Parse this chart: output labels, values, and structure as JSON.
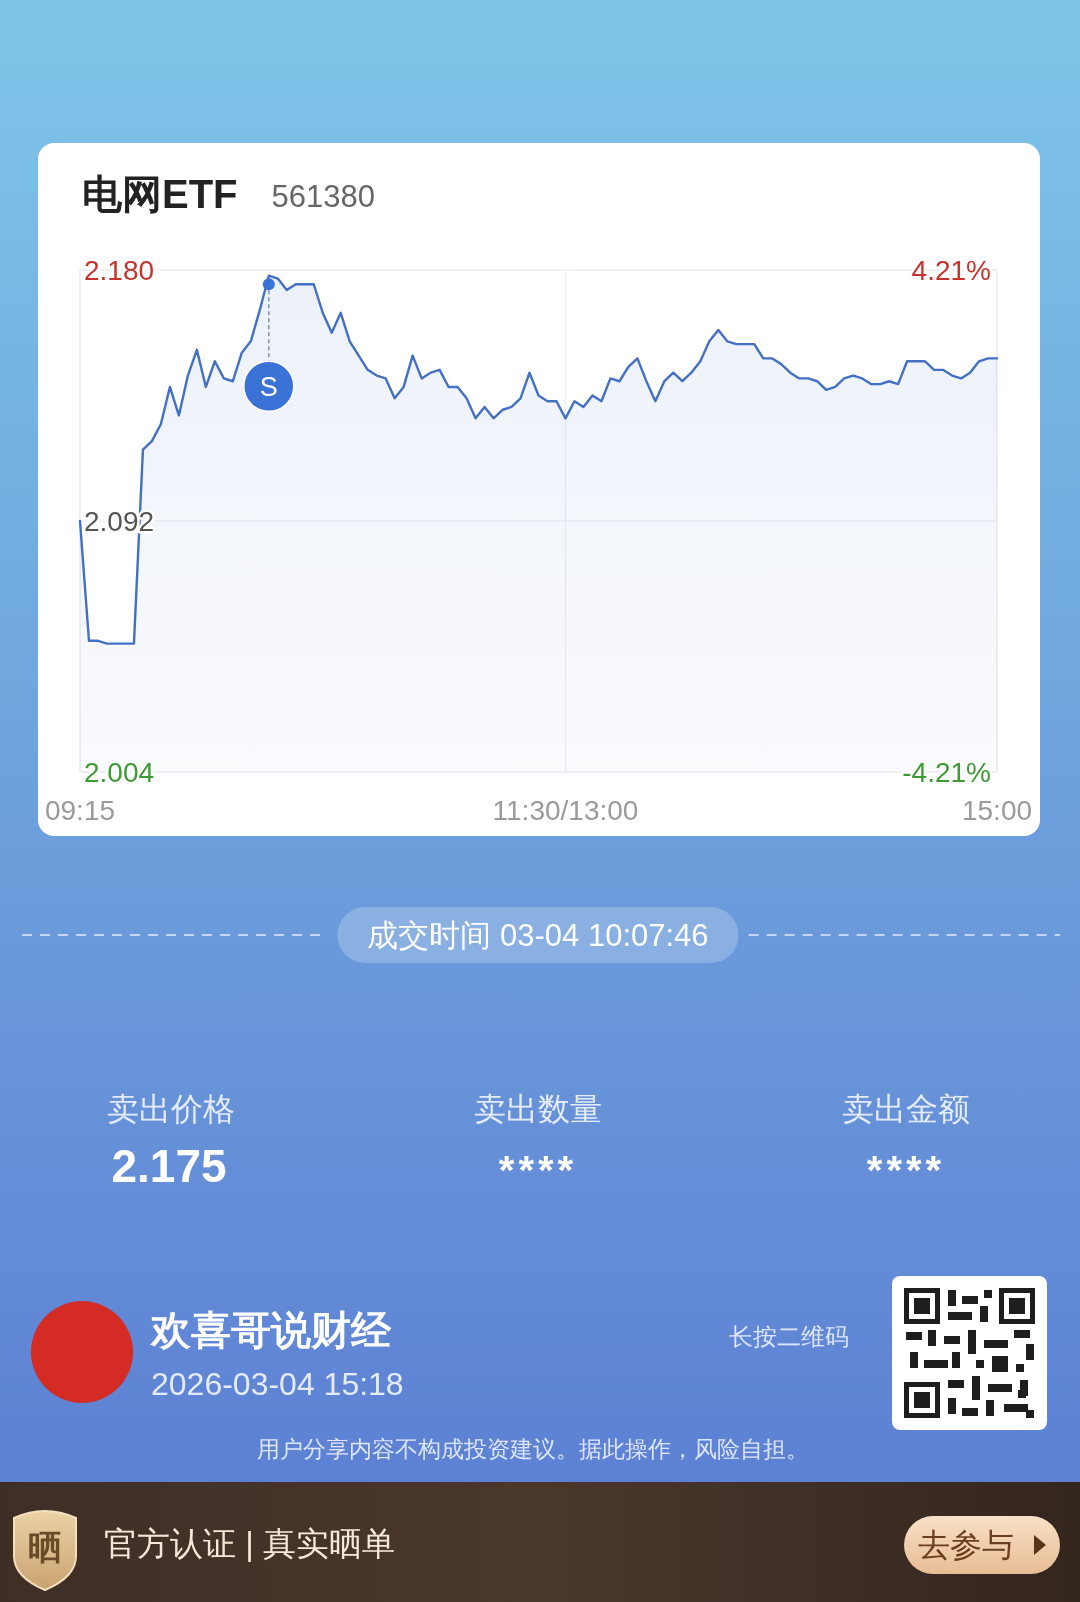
{
  "chart_data": {
    "type": "area",
    "title": "电网ETF",
    "subtitle": "561380",
    "categories": [
      "09:15",
      null,
      null,
      null,
      null,
      null,
      null,
      null,
      null,
      null,
      null,
      null,
      null,
      null,
      null,
      null,
      null,
      null,
      null,
      null,
      null,
      null,
      null,
      null,
      null,
      null,
      null,
      null,
      null,
      null,
      null,
      null,
      null,
      null,
      null,
      null,
      null,
      null,
      null,
      null,
      null,
      null,
      null,
      null,
      null,
      null,
      null,
      null,
      null,
      null,
      null,
      null,
      null,
      null,
      "11:30/13:00",
      null,
      null,
      null,
      null,
      null,
      null,
      null,
      null,
      null,
      null,
      null,
      null,
      null,
      null,
      null,
      null,
      null,
      null,
      null,
      null,
      null,
      null,
      null,
      null,
      null,
      null,
      null,
      null,
      null,
      null,
      null,
      null,
      null,
      null,
      null,
      null,
      null,
      null,
      null,
      null,
      null,
      null,
      null,
      null,
      null,
      null,
      null,
      "15:00"
    ],
    "series": [
      {
        "color": "#4470c4",
        "values": [
          2.092,
          2.05,
          2.05,
          2.049,
          2.049,
          2.049,
          2.049,
          2.117,
          2.12,
          2.126,
          2.139,
          2.129,
          2.143,
          2.152,
          2.139,
          2.148,
          2.142,
          2.141,
          2.151,
          2.155,
          2.166,
          2.178,
          2.177,
          2.173,
          2.175,
          2.175,
          2.175,
          2.165,
          2.158,
          2.165,
          2.155,
          2.15,
          2.145,
          2.143,
          2.142,
          2.135,
          2.139,
          2.15,
          2.142,
          2.144,
          2.145,
          2.139,
          2.139,
          2.135,
          2.128,
          2.132,
          2.128,
          2.131,
          2.132,
          2.135,
          2.144,
          2.136,
          2.134,
          2.134,
          2.128,
          2.134,
          2.132,
          2.136,
          2.134,
          2.142,
          2.141,
          2.146,
          2.149,
          2.141,
          2.134,
          2.141,
          2.144,
          2.141,
          2.144,
          2.148,
          2.155,
          2.159,
          2.155,
          2.154,
          2.154,
          2.154,
          2.149,
          2.149,
          2.147,
          2.144,
          2.142,
          2.142,
          2.141,
          2.138,
          2.139,
          2.142,
          2.143,
          2.142,
          2.14,
          2.14,
          2.141,
          2.14,
          2.148,
          2.148,
          2.148,
          2.145,
          2.145,
          2.143,
          2.142,
          2.144,
          2.148,
          2.149,
          2.149
        ]
      },
      {
        "type": "scatter",
        "name": "S",
        "color": "#3b72d6",
        "values": [
          null,
          null,
          null,
          null,
          null,
          null,
          null,
          null,
          null,
          null,
          null,
          null,
          null,
          null,
          null,
          null,
          null,
          null,
          null,
          null,
          null,
          2.175,
          null,
          null,
          null,
          null,
          null,
          null,
          null,
          null,
          null,
          null,
          null,
          null,
          null,
          null,
          null,
          null,
          null,
          null,
          null,
          null,
          null,
          null,
          null,
          null,
          null,
          null,
          null,
          null,
          null,
          null,
          null,
          null,
          null,
          null,
          null,
          null,
          null,
          null,
          null,
          null,
          null,
          null,
          null,
          null,
          null,
          null,
          null,
          null,
          null,
          null,
          null,
          null,
          null,
          null,
          null,
          null,
          null,
          null,
          null,
          null,
          null,
          null,
          null,
          null,
          null,
          null,
          null,
          null,
          null,
          null,
          null,
          null,
          null,
          null,
          null,
          null,
          null,
          null,
          null,
          null,
          null
        ]
      }
    ],
    "ylim": [
      2.004,
      2.18
    ],
    "yticks": [
      {
        "value": 2.18,
        "label": "2.180"
      },
      2.092,
      2.004
    ],
    "y2lim": [
      -4.21,
      4.21
    ],
    "y2ticks": [
      {
        "value": 4.21,
        "label": "4.21%"
      },
      {
        "value": -4.21,
        "label": "-4.21%"
      }
    ],
    "grid": true,
    "annotations": [
      "成交时间 03-04 10:07:46",
      "卖出价格",
      "2.175",
      "卖出数量",
      "****",
      "卖出金额",
      "****",
      "欢喜哥说财经",
      "2026-03-04 15:18",
      "长按二维码",
      "用户分享内容不构成投资建议。据此操作，风险自担。",
      "晒",
      "官方认证 | 真实晒单",
      "去参与"
    ]
  }
}
